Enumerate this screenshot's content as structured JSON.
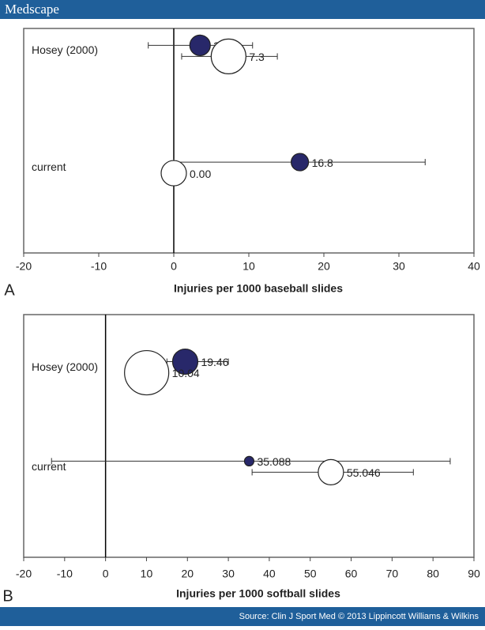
{
  "header": "Medscape",
  "footer": "Source: Clin J Sport Med © 2013 Lippincott Williams & Wilkins",
  "chart_data": [
    {
      "type": "bubble",
      "label": "A",
      "title": "Injuries per 1000 baseball slides",
      "categories": [
        "Hosey (2000)",
        "current"
      ],
      "xlim": [
        -20,
        40
      ],
      "xticks": [
        -20,
        -10,
        0,
        10,
        20,
        30,
        40
      ],
      "series": [
        {
          "color": "#28286a",
          "values": [
            3.5,
            16.8
          ],
          "lower": [
            -3.4,
            0
          ],
          "upper": [
            10.5,
            33.5
          ],
          "sizes": [
            13,
            11
          ]
        },
        {
          "color": "#ffffff",
          "values": [
            7.3,
            0
          ],
          "value_labels": [
            "7.3",
            "0.00"
          ],
          "lower": [
            1.05,
            null
          ],
          "upper": [
            13.8,
            null
          ],
          "sizes": [
            22,
            16
          ]
        }
      ]
    },
    {
      "type": "bubble",
      "label": "B",
      "title": "Injuries per 1000 softball slides",
      "categories": [
        "Hosey (2000)",
        "current"
      ],
      "xlim": [
        -20,
        90
      ],
      "xticks": [
        -20,
        -10,
        0,
        10,
        20,
        30,
        40,
        50,
        60,
        70,
        80,
        90
      ],
      "series": [
        {
          "color": "#28286a",
          "values": [
            19.46,
            35.088
          ],
          "lower": [
            15,
            -13.2
          ],
          "upper": [
            30,
            84.2
          ],
          "sizes": [
            16,
            6
          ]
        },
        {
          "color": "#ffffff",
          "values": [
            10.04,
            55.046
          ],
          "lower": [
            null,
            35.8
          ],
          "upper": [
            null,
            75.2
          ],
          "sizes": [
            28,
            16
          ]
        }
      ]
    }
  ]
}
